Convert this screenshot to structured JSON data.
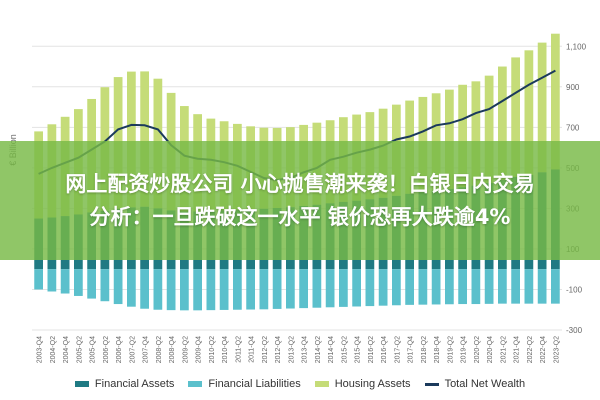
{
  "banner": {
    "line1": "网上配资炒股公司 小心抛售潮来袭！白银日内交易",
    "line2": "分析：一旦跌破这一水平 银价恐再大跌逾4%"
  },
  "legend": {
    "financial_assets": "Financial Assets",
    "financial_liabilities": "Financial Liabilities",
    "housing_assets": "Housing Assets",
    "total_net_wealth": "Total Net Wealth"
  },
  "colors": {
    "financial_assets": "#1f7a83",
    "financial_liabilities": "#5bc0cc",
    "housing_assets": "#c5dc78",
    "total_net_wealth": "#1b3a5c",
    "banner": "#78b946"
  },
  "chart_data": {
    "type": "bar",
    "ylabel": "€ Billion",
    "ylim": [
      -300,
      1200
    ],
    "yticks": [
      -300,
      -100,
      100,
      300,
      500,
      700,
      900,
      1100
    ],
    "ytick_labels": [
      "-300",
      "-100",
      "100",
      "300",
      "500",
      "700",
      "900",
      "1,100"
    ],
    "grid": true,
    "legend_position": "bottom",
    "categories": [
      "2003-Q4",
      "2004-Q2",
      "2004-Q4",
      "2005-Q2",
      "2005-Q4",
      "2006-Q2",
      "2006-Q4",
      "2007-Q2",
      "2007-Q4",
      "2008-Q2",
      "2008-Q4",
      "2009-Q2",
      "2009-Q4",
      "2010-Q2",
      "2010-Q4",
      "2011-Q2",
      "2011-Q4",
      "2012-Q2",
      "2012-Q4",
      "2013-Q2",
      "2013-Q4",
      "2014-Q2",
      "2014-Q4",
      "2015-Q2",
      "2015-Q4",
      "2016-Q2",
      "2016-Q4",
      "2017-Q2",
      "2017-Q4",
      "2018-Q2",
      "2018-Q4",
      "2019-Q2",
      "2019-Q4",
      "2020-Q2",
      "2020-Q4",
      "2021-Q2",
      "2021-Q4",
      "2022-Q2",
      "2022-Q4",
      "2023-Q2"
    ],
    "series": [
      {
        "name": "Financial Assets",
        "values": [
          250,
          255,
          262,
          270,
          280,
          288,
          298,
          305,
          308,
          300,
          290,
          285,
          285,
          288,
          290,
          292,
          295,
          298,
          302,
          306,
          312,
          318,
          325,
          332,
          338,
          345,
          352,
          362,
          372,
          380,
          388,
          396,
          405,
          412,
          425,
          440,
          455,
          465,
          478,
          492
        ]
      },
      {
        "name": "Financial Liabilities",
        "values": [
          -100,
          -110,
          -120,
          -132,
          -145,
          -158,
          -172,
          -185,
          -195,
          -200,
          -202,
          -203,
          -203,
          -202,
          -201,
          -200,
          -199,
          -198,
          -196,
          -194,
          -192,
          -190,
          -188,
          -186,
          -184,
          -182,
          -180,
          -178,
          -176,
          -175,
          -174,
          -173,
          -172,
          -172,
          -171,
          -170,
          -170,
          -170,
          -170,
          -170
        ]
      },
      {
        "name": "Housing Assets",
        "values": [
          430,
          460,
          490,
          520,
          560,
          610,
          650,
          670,
          668,
          640,
          580,
          520,
          480,
          455,
          440,
          425,
          410,
          400,
          395,
          395,
          400,
          405,
          410,
          418,
          425,
          430,
          440,
          450,
          460,
          470,
          480,
          490,
          505,
          515,
          530,
          560,
          590,
          615,
          640,
          670
        ]
      },
      {
        "name": "Total Net Wealth",
        "values": [
          470,
          500,
          525,
          550,
          590,
          630,
          690,
          712,
          710,
          690,
          612,
          560,
          545,
          540,
          528,
          510,
          480,
          450,
          440,
          450,
          478,
          500,
          540,
          555,
          575,
          590,
          610,
          640,
          655,
          680,
          710,
          720,
          740,
          770,
          790,
          830,
          870,
          910,
          945,
          980
        ]
      }
    ],
    "xtick_labels": [
      "2003-Q4",
      "2004-Q2",
      "2004-Q4",
      "2005-Q2",
      "2005-Q4",
      "2006-Q2",
      "2006-Q4",
      "2007-Q2",
      "2007-Q4",
      "2008-Q2",
      "2008-Q4",
      "2009-Q2",
      "2009-Q4",
      "2010-Q2",
      "2010-Q4",
      "2011-Q2",
      "2011-Q4",
      "2012-Q2",
      "2012-Q4",
      "2013-Q2",
      "2013-Q4",
      "2014-Q2",
      "2014-Q4",
      "2015-Q2",
      "2015-Q4",
      "2016-Q2",
      "2016-Q4",
      "2017-Q2",
      "2017-Q4",
      "2018-Q2",
      "2018-Q4",
      "2019-Q2",
      "2019-Q4",
      "2020-Q2",
      "2020-Q4",
      "2021-Q2",
      "2021-Q4",
      "2022-Q2",
      "2022-Q4",
      "2023-Q2"
    ]
  }
}
